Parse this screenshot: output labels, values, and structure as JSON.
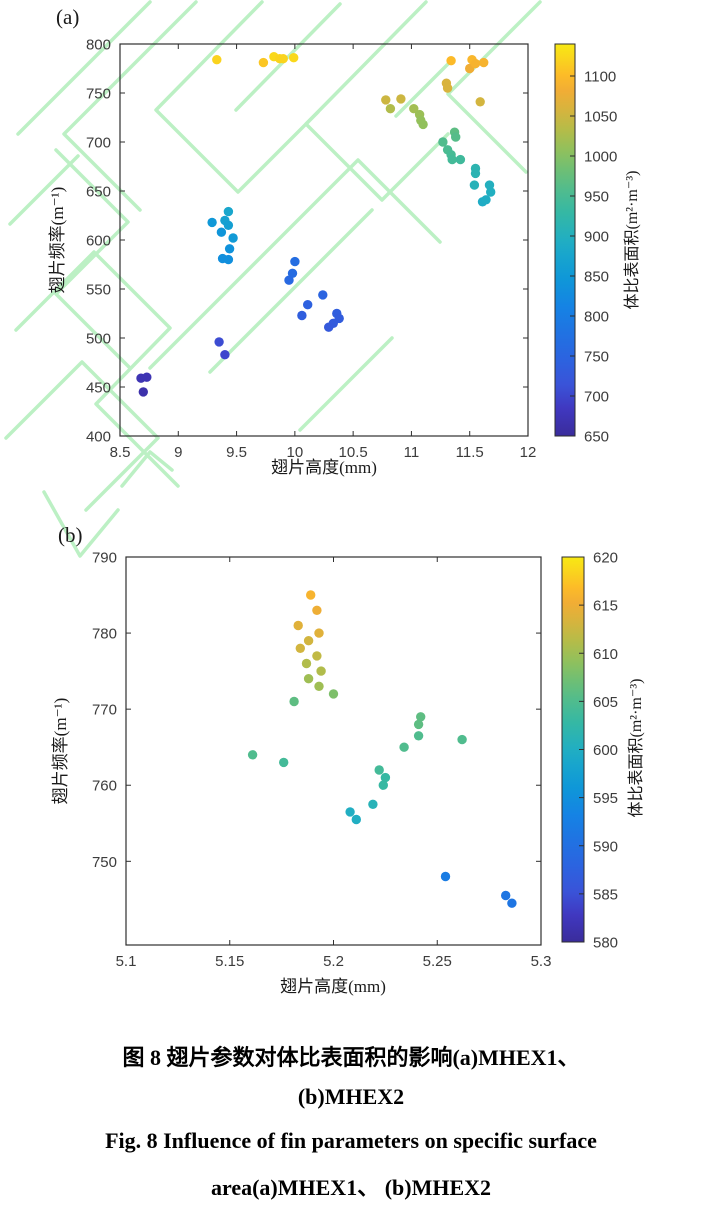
{
  "page": {
    "background": "#ffffff",
    "watermark_color": "#b5efbe"
  },
  "panels": {
    "a_label": "(a)",
    "b_label": "(b)"
  },
  "caption": {
    "zh_line1": "图 8  翅片参数对体比表面积的影响(a)MHEX1、",
    "zh_line2": "(b)MHEX2",
    "en_line1": "Fig. 8  Influence of fin parameters on specific surface",
    "en_line2": "area(a)MHEX1、 (b)MHEX2"
  },
  "colormap": {
    "name": "parula-like",
    "stops": [
      [
        0.0,
        "#3a2c9b"
      ],
      [
        0.07,
        "#4038c0"
      ],
      [
        0.13,
        "#3a53d8"
      ],
      [
        0.2,
        "#2b64e0"
      ],
      [
        0.27,
        "#1f74e2"
      ],
      [
        0.33,
        "#1583e4"
      ],
      [
        0.4,
        "#0f97d8"
      ],
      [
        0.46,
        "#18a5cd"
      ],
      [
        0.5,
        "#21aec2"
      ],
      [
        0.57,
        "#35b8a4"
      ],
      [
        0.63,
        "#52bc8c"
      ],
      [
        0.68,
        "#6fbf74"
      ],
      [
        0.73,
        "#91c05c"
      ],
      [
        0.78,
        "#b4bc49"
      ],
      [
        0.83,
        "#d5b43e"
      ],
      [
        0.88,
        "#f1ad35"
      ],
      [
        0.92,
        "#fcbb28"
      ],
      [
        0.96,
        "#fad31e"
      ],
      [
        1.0,
        "#f8e913"
      ]
    ]
  },
  "chart_data": [
    {
      "id": "a",
      "type": "scatter",
      "panel_label": "(a)",
      "xlabel": "翅片高度(mm)",
      "ylabel": "翅片频率(m⁻¹)",
      "xlim": [
        8.5,
        12
      ],
      "ylim": [
        400,
        800
      ],
      "grid": false,
      "xticks": {
        "values": [
          8.5,
          9,
          9.5,
          10,
          10.5,
          11,
          11.5,
          12
        ],
        "labels": [
          "8.5",
          "9",
          "9.5",
          "10",
          "10.5",
          "11",
          "11.5",
          "12"
        ]
      },
      "yticks": {
        "values": [
          400,
          450,
          500,
          550,
          600,
          650,
          700,
          750,
          800
        ],
        "labels": [
          "400",
          "450",
          "500",
          "550",
          "600",
          "650",
          "700",
          "750",
          "800"
        ]
      },
      "colorbar": {
        "label": "体比表面积(m²·m⁻³)",
        "min": 650,
        "max": 1140,
        "tick_values": [
          650,
          700,
          750,
          800,
          850,
          900,
          950,
          1000,
          1050,
          1100
        ],
        "tick_labels": [
          "650",
          "700",
          "750",
          "800",
          "850",
          "900",
          "950",
          "1000",
          "1050",
          "1100"
        ]
      },
      "points": [
        [
          9.33,
          784,
          1120
        ],
        [
          9.73,
          781,
          1110
        ],
        [
          9.82,
          787,
          1125
        ],
        [
          9.87,
          785,
          1120
        ],
        [
          9.9,
          785,
          1120
        ],
        [
          9.99,
          786,
          1125
        ],
        [
          11.34,
          783,
          1100
        ],
        [
          11.5,
          775,
          1080
        ],
        [
          11.52,
          784,
          1095
        ],
        [
          11.55,
          780,
          1090
        ],
        [
          11.62,
          781,
          1090
        ],
        [
          11.3,
          760,
          1060
        ],
        [
          11.31,
          755,
          1060
        ],
        [
          11.59,
          741,
          1055
        ],
        [
          10.78,
          743,
          1050
        ],
        [
          10.91,
          744,
          1050
        ],
        [
          10.82,
          734,
          1030
        ],
        [
          11.02,
          734,
          1020
        ],
        [
          11.07,
          728,
          1015
        ],
        [
          11.08,
          722,
          1010
        ],
        [
          11.1,
          718,
          1008
        ],
        [
          11.37,
          710,
          968
        ],
        [
          11.38,
          705,
          962
        ],
        [
          11.27,
          700,
          958
        ],
        [
          11.31,
          692,
          952
        ],
        [
          11.34,
          687,
          948
        ],
        [
          11.35,
          682,
          944
        ],
        [
          11.42,
          682,
          940
        ],
        [
          11.55,
          673,
          916
        ],
        [
          11.55,
          668,
          912
        ],
        [
          11.54,
          656,
          906
        ],
        [
          11.67,
          656,
          900
        ],
        [
          11.68,
          649,
          897
        ],
        [
          11.61,
          639,
          890
        ],
        [
          11.64,
          641,
          892
        ],
        [
          9.43,
          629,
          878
        ],
        [
          9.4,
          620,
          868
        ],
        [
          9.43,
          615,
          862
        ],
        [
          9.29,
          618,
          848
        ],
        [
          9.37,
          608,
          842
        ],
        [
          9.47,
          602,
          852
        ],
        [
          9.44,
          591,
          838
        ],
        [
          9.38,
          581,
          832
        ],
        [
          9.43,
          580,
          832
        ],
        [
          10.0,
          578,
          768
        ],
        [
          9.98,
          566,
          762
        ],
        [
          9.95,
          559,
          758
        ],
        [
          10.24,
          544,
          748
        ],
        [
          10.11,
          534,
          742
        ],
        [
          10.06,
          523,
          736
        ],
        [
          10.36,
          525,
          736
        ],
        [
          10.38,
          520,
          732
        ],
        [
          10.33,
          515,
          730
        ],
        [
          10.29,
          511,
          726
        ],
        [
          9.35,
          496,
          706
        ],
        [
          9.4,
          483,
          700
        ],
        [
          8.68,
          459,
          672
        ],
        [
          8.73,
          460,
          672
        ],
        [
          8.7,
          445,
          665
        ]
      ]
    },
    {
      "id": "b",
      "type": "scatter",
      "panel_label": "(b)",
      "xlabel": "翅片高度(mm)",
      "ylabel": "翅片频率(m⁻¹)",
      "xlim": [
        5.1,
        5.3
      ],
      "ylim": [
        739,
        790
      ],
      "grid": false,
      "xticks": {
        "values": [
          5.1,
          5.15,
          5.2,
          5.25,
          5.3
        ],
        "labels": [
          "5.1",
          "5.15",
          "5.2",
          "5.25",
          "5.3"
        ]
      },
      "yticks": {
        "values": [
          750,
          760,
          770,
          780,
          790
        ],
        "labels": [
          "750",
          "760",
          "770",
          "780",
          "790"
        ]
      },
      "colorbar": {
        "label": "体比表面积(m²·m⁻³)",
        "min": 580,
        "max": 620,
        "tick_values": [
          580,
          585,
          590,
          595,
          600,
          605,
          610,
          615,
          620
        ],
        "tick_labels": [
          "580",
          "585",
          "590",
          "595",
          "600",
          "605",
          "610",
          "615",
          "620"
        ]
      },
      "points": [
        [
          5.189,
          785,
          616
        ],
        [
          5.192,
          783,
          615
        ],
        [
          5.183,
          781,
          614
        ],
        [
          5.193,
          780,
          614
        ],
        [
          5.188,
          779,
          613
        ],
        [
          5.184,
          778,
          613
        ],
        [
          5.192,
          777,
          612
        ],
        [
          5.187,
          776,
          611
        ],
        [
          5.194,
          775,
          611
        ],
        [
          5.188,
          774,
          610
        ],
        [
          5.193,
          773,
          610
        ],
        [
          5.2,
          772,
          608
        ],
        [
          5.181,
          771,
          606
        ],
        [
          5.242,
          769,
          606
        ],
        [
          5.241,
          768,
          606
        ],
        [
          5.241,
          766.5,
          605
        ],
        [
          5.262,
          766,
          605
        ],
        [
          5.234,
          765,
          605
        ],
        [
          5.161,
          764,
          605
        ],
        [
          5.176,
          763,
          604
        ],
        [
          5.222,
          762,
          604
        ],
        [
          5.225,
          761,
          603
        ],
        [
          5.224,
          760,
          603
        ],
        [
          5.219,
          757.5,
          601
        ],
        [
          5.208,
          756.5,
          600
        ],
        [
          5.211,
          755.5,
          600
        ],
        [
          5.254,
          748,
          592
        ],
        [
          5.283,
          745.5,
          591
        ],
        [
          5.286,
          744.5,
          591
        ]
      ]
    }
  ]
}
